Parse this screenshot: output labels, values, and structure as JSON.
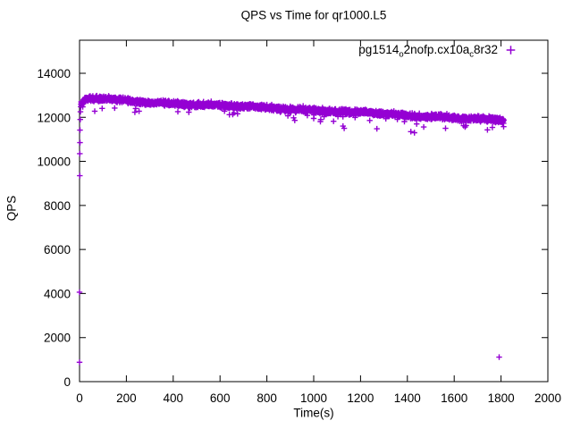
{
  "window": {
    "background": "#ffffff",
    "border_color": "#000000",
    "text_color": "#000000"
  },
  "chart_data": {
    "type": "scatter",
    "title": "QPS vs Time for qr1000.L5",
    "xlabel": "Time(s)",
    "ylabel": "QPS",
    "xlim": [
      0,
      2000
    ],
    "ylim": [
      0,
      15500
    ],
    "xticks": [
      0,
      200,
      400,
      600,
      800,
      1000,
      1200,
      1400,
      1600,
      1800,
      2000
    ],
    "yticks": [
      0,
      2000,
      4000,
      6000,
      8000,
      10000,
      12000,
      14000
    ],
    "grid": false,
    "tick_style": "inward, mirrored on top and right borders",
    "legend_position": "inside top-right",
    "series": [
      {
        "name": "pg1514_o2nofp.cx10a_c8r32",
        "label_parts": [
          {
            "text": "pg1514",
            "sub": false
          },
          {
            "text": "o",
            "sub": true
          },
          {
            "text": "2nofp.cx10a",
            "sub": false
          },
          {
            "text": "c",
            "sub": true
          },
          {
            "text": "8r32",
            "sub": false
          }
        ],
        "marker": "+",
        "color": "#9400d3",
        "summary": "Dense steady-state band of ~1s samples declining from ~12850 QPS at t=30s to ~11830 QPS at t=1810s, with brief warmup ramp at t=0 and one low outlier near the end",
        "trend": [
          [
            8,
            12600
          ],
          [
            25,
            12820
          ],
          [
            60,
            12850
          ],
          [
            120,
            12800
          ],
          [
            200,
            12740
          ],
          [
            300,
            12700
          ],
          [
            400,
            12660
          ],
          [
            500,
            12580
          ],
          [
            600,
            12520
          ],
          [
            700,
            12480
          ],
          [
            800,
            12440
          ],
          [
            900,
            12400
          ],
          [
            1000,
            12340
          ],
          [
            1100,
            12260
          ],
          [
            1160,
            12180
          ],
          [
            1220,
            12230
          ],
          [
            1300,
            12150
          ],
          [
            1400,
            12100
          ],
          [
            1500,
            12060
          ],
          [
            1600,
            11970
          ],
          [
            1700,
            11900
          ],
          [
            1812,
            11830
          ]
        ],
        "noise_amplitude": 170,
        "points_per_second": 1.6,
        "time_range": [
          8,
          1812
        ],
        "startup_points": [
          [
            0,
            880
          ],
          [
            0,
            4060
          ],
          [
            1,
            9350
          ],
          [
            1,
            10350
          ],
          [
            2,
            10850
          ],
          [
            2,
            11420
          ],
          [
            3,
            11900
          ],
          [
            4,
            12250
          ],
          [
            5,
            12480
          ],
          [
            6,
            12600
          ],
          [
            7,
            12700
          ],
          [
            9,
            12560
          ],
          [
            11,
            12680
          ],
          [
            13,
            12600
          ]
        ],
        "low_strays": [
          [
            65,
            12280
          ],
          [
            150,
            12420
          ],
          [
            420,
            12260
          ],
          [
            640,
            12120
          ],
          [
            660,
            12200
          ],
          [
            1000,
            11950
          ],
          [
            1030,
            11900
          ],
          [
            1125,
            11600
          ],
          [
            1130,
            11500
          ],
          [
            1270,
            11480
          ],
          [
            1415,
            11350
          ],
          [
            1430,
            11300
          ],
          [
            1470,
            11560
          ],
          [
            1563,
            11500
          ],
          [
            1640,
            11620
          ],
          [
            1742,
            11430
          ],
          [
            1763,
            11540
          ]
        ],
        "outlier_points": [
          [
            1792,
            1110
          ]
        ]
      }
    ]
  }
}
